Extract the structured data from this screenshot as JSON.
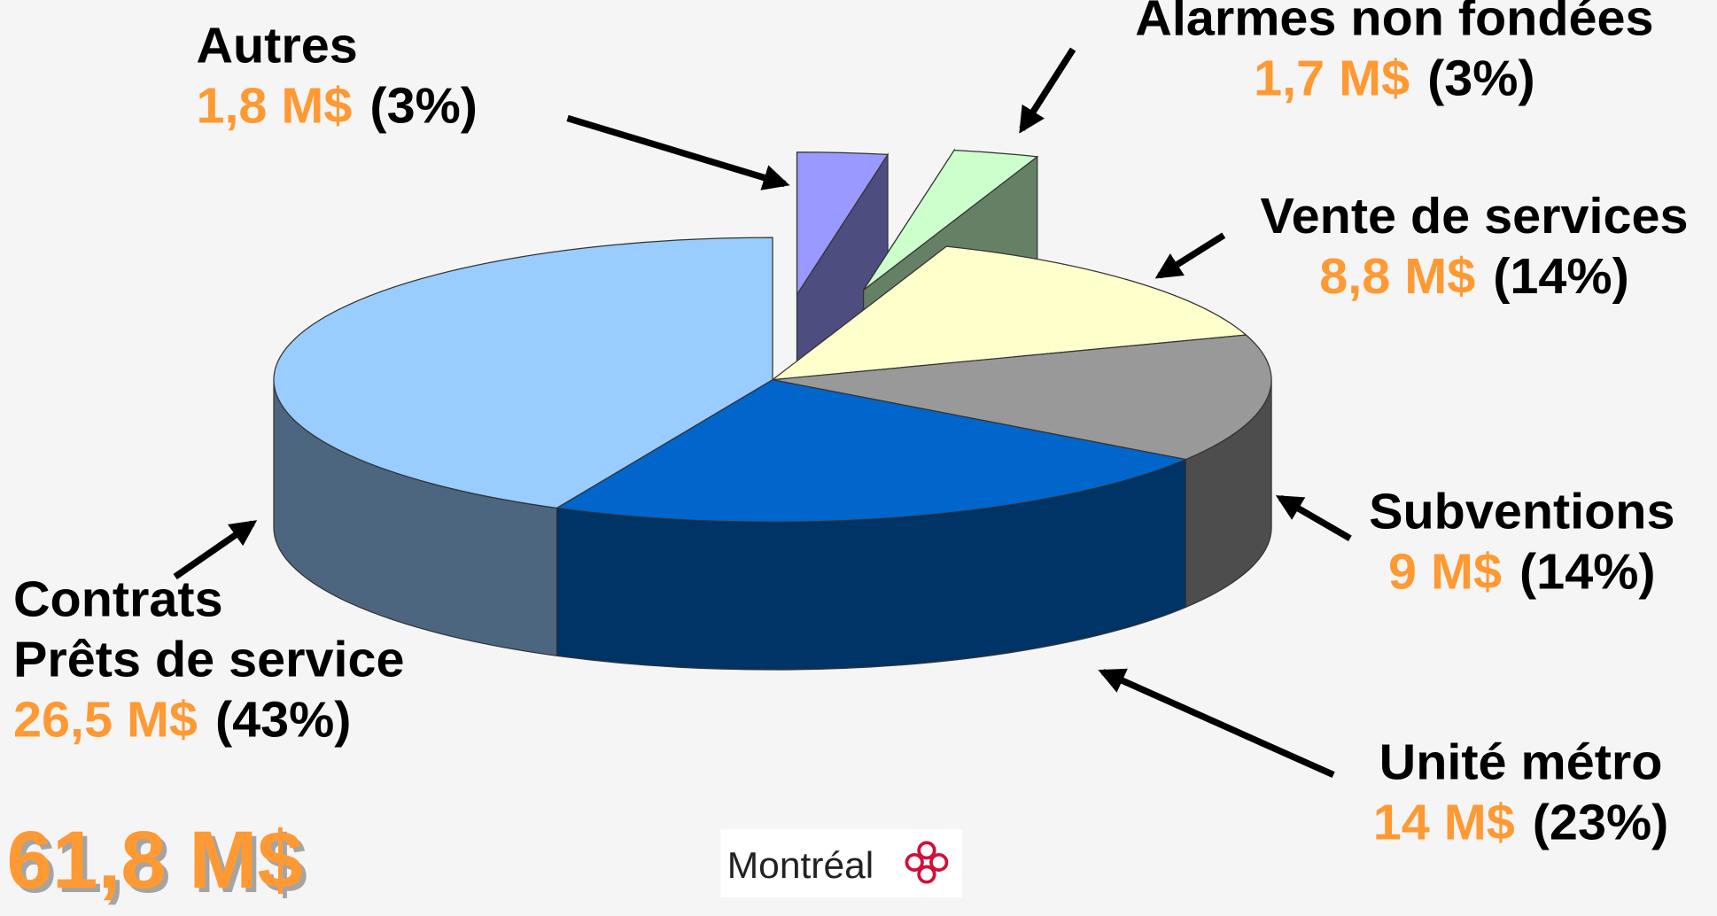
{
  "chart_data": {
    "type": "pie",
    "categories": [
      "Autres",
      "Alarmes non fondées",
      "Vente de services",
      "Subventions",
      "Unité métro",
      "Contrats\nPrêts de service"
    ],
    "values": [
      1.8,
      1.7,
      8.8,
      9,
      14,
      26.5
    ],
    "value_labels": [
      "1,8 M$",
      "1,7 M$",
      "8,8 M$",
      "9 M$",
      "14 M$",
      "26,5 M$"
    ],
    "percents": [
      3,
      3,
      14,
      14,
      23,
      43
    ],
    "percent_labels": [
      "(3%)",
      "(3%)",
      "(14%)",
      "(14%)",
      "(23%)",
      "(43%)"
    ],
    "colors": [
      "#9999ff",
      "#ccffcc",
      "#ffffcc",
      "#999999",
      "#0066cc",
      "#99ccff"
    ],
    "total": 61.8,
    "total_label": "61,8 M$",
    "logo": "Montréal"
  }
}
